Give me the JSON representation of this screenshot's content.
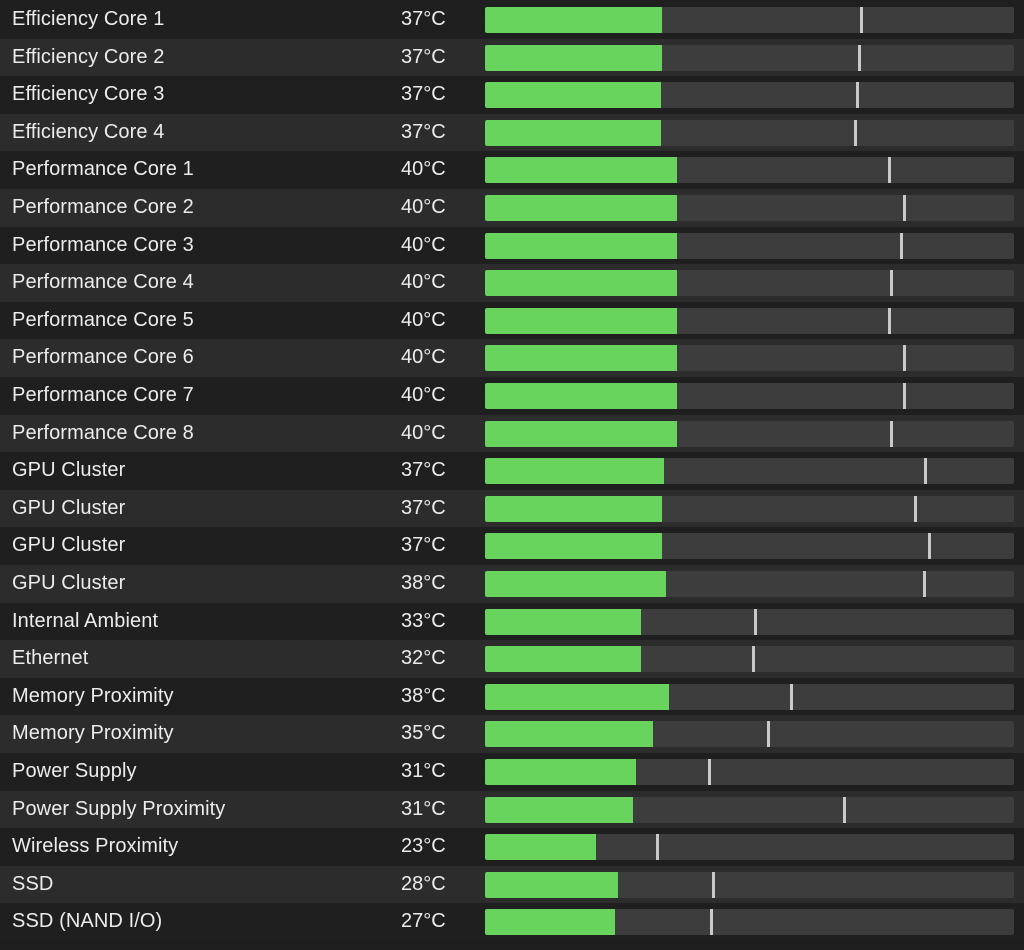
{
  "sensors": [
    {
      "name": "Efficiency Core 1",
      "temperature": "37°C",
      "level_pct": 33.5,
      "peak_pct": 71.0
    },
    {
      "name": "Efficiency Core 2",
      "temperature": "37°C",
      "level_pct": 33.5,
      "peak_pct": 70.7
    },
    {
      "name": "Efficiency Core 3",
      "temperature": "37°C",
      "level_pct": 33.3,
      "peak_pct": 70.3
    },
    {
      "name": "Efficiency Core 4",
      "temperature": "37°C",
      "level_pct": 33.3,
      "peak_pct": 70.0
    },
    {
      "name": "Performance Core 1",
      "temperature": "40°C",
      "level_pct": 36.3,
      "peak_pct": 76.4
    },
    {
      "name": "Performance Core 2",
      "temperature": "40°C",
      "level_pct": 36.3,
      "peak_pct": 79.2
    },
    {
      "name": "Performance Core 3",
      "temperature": "40°C",
      "level_pct": 36.3,
      "peak_pct": 78.6
    },
    {
      "name": "Performance Core 4",
      "temperature": "40°C",
      "level_pct": 36.3,
      "peak_pct": 76.7
    },
    {
      "name": "Performance Core 5",
      "temperature": "40°C",
      "level_pct": 36.3,
      "peak_pct": 76.4
    },
    {
      "name": "Performance Core 6",
      "temperature": "40°C",
      "level_pct": 36.3,
      "peak_pct": 79.2
    },
    {
      "name": "Performance Core 7",
      "temperature": "40°C",
      "level_pct": 36.3,
      "peak_pct": 79.2
    },
    {
      "name": "Performance Core 8",
      "temperature": "40°C",
      "level_pct": 36.3,
      "peak_pct": 76.7
    },
    {
      "name": "GPU Cluster",
      "temperature": "37°C",
      "level_pct": 33.8,
      "peak_pct": 83.2
    },
    {
      "name": "GPU Cluster",
      "temperature": "37°C",
      "level_pct": 33.5,
      "peak_pct": 81.3
    },
    {
      "name": "GPU Cluster",
      "temperature": "37°C",
      "level_pct": 33.5,
      "peak_pct": 83.9
    },
    {
      "name": "GPU Cluster",
      "temperature": "38°C",
      "level_pct": 34.2,
      "peak_pct": 82.9
    },
    {
      "name": "Internal Ambient",
      "temperature": "33°C",
      "level_pct": 29.5,
      "peak_pct": 51.0
    },
    {
      "name": "Ethernet",
      "temperature": "32°C",
      "level_pct": 29.5,
      "peak_pct": 50.7
    },
    {
      "name": "Memory Proximity",
      "temperature": "38°C",
      "level_pct": 34.8,
      "peak_pct": 57.8
    },
    {
      "name": "Memory Proximity",
      "temperature": "35°C",
      "level_pct": 31.7,
      "peak_pct": 53.5
    },
    {
      "name": "Power Supply",
      "temperature": "31°C",
      "level_pct": 28.5,
      "peak_pct": 42.3
    },
    {
      "name": "Power Supply Proximity",
      "temperature": "31°C",
      "level_pct": 28.0,
      "peak_pct": 67.9
    },
    {
      "name": "Wireless Proximity",
      "temperature": "23°C",
      "level_pct": 21.0,
      "peak_pct": 32.5
    },
    {
      "name": "SSD",
      "temperature": "28°C",
      "level_pct": 25.1,
      "peak_pct": 43.1
    },
    {
      "name": "SSD (NAND I/O)",
      "temperature": "27°C",
      "level_pct": 24.6,
      "peak_pct": 42.7
    }
  ]
}
